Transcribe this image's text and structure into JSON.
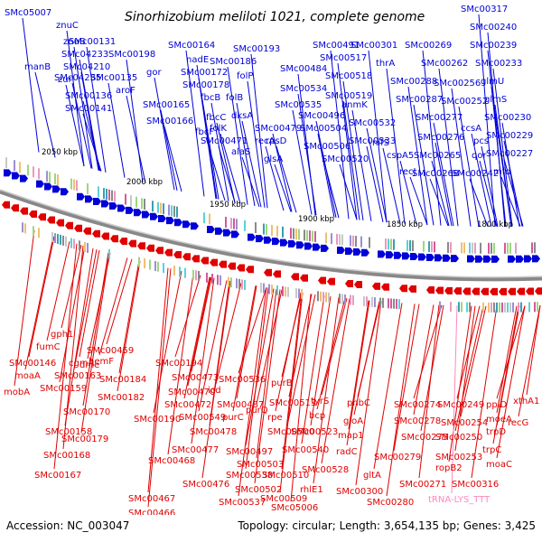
{
  "title": "Sinorhizobium meliloti 1021, complete genome",
  "footer": {
    "accession": "Accession: NC_003047",
    "topology": "Topology: circular; Length: 3,654,135 bp; Genes: 3,425"
  },
  "colors": {
    "forward": "#0000d8",
    "reverse": "#e00000",
    "rna": "#ff88bb",
    "backbone": "#666666"
  },
  "kbp_ticks": [
    "2050 kbp",
    "2000 kbp",
    "1950 kbp",
    "1900 kbp",
    "1850 kbp",
    "1800 kbp"
  ],
  "forward_labels": [
    "SMc05007",
    "znuC",
    "znuB",
    "SMc00131",
    "SMc04233",
    "SMc00198",
    "SMc04210",
    "zur",
    "SMc04235",
    "manB",
    "SMc00135",
    "SMc00136",
    "SMc00141",
    "aroF",
    "gor",
    "SMc00165",
    "SMc00166",
    "SMc00164",
    "nadE",
    "SMc00172",
    "SMc00178",
    "fbcB",
    "fbcC",
    "fbcF",
    "SMc00186",
    "SMc00193",
    "folP",
    "folB",
    "dksA",
    "folK",
    "SMc00471",
    "alaS",
    "recA",
    "SMc00479",
    "rpsD",
    "glsA",
    "SMc00484",
    "SMc00534",
    "SMc00535",
    "SMc00496",
    "SMc00504",
    "SMc00506",
    "SMc00491",
    "SMc00517",
    "SMc00518",
    "SMc00519",
    "SMc00520",
    "SMc00301",
    "anmK",
    "SMc00532",
    "SMc00533",
    "nifS",
    "thrA",
    "SMc00288",
    "SMc00287",
    "cspA5",
    "recJ",
    "SMc00269",
    "SMc00262",
    "SMc00277",
    "SMc00276",
    "SMc00265",
    "SMc00268",
    "SMc00256",
    "SMc00252",
    "SMc00317",
    "SMc00240",
    "SMc00239",
    "SMc00233",
    "glmU",
    "glmS",
    "SMc00230",
    "SMc00229",
    "SMc00227",
    "ccsA",
    "pcs",
    "qor",
    "SMc00242",
    "mfd"
  ],
  "reverse_labels": [
    "gph1",
    "fumC",
    "SMc00146",
    "moaA",
    "mobA",
    "SMc00163",
    "SMc00159",
    "SMc00158",
    "cgmA",
    "dme",
    "SMc00459",
    "hemF",
    "SMc00184",
    "SMc00182",
    "SMc00170",
    "SMc00179",
    "SMc00168",
    "SMc00167",
    "SMc00194",
    "SMc00190",
    "SMc00473",
    "SMc00470",
    "SMc00472",
    "SMc00549",
    "SMc00478",
    "SMc00477",
    "SMc00468",
    "SMc00476",
    "SMc00467",
    "SMc00466",
    "icd",
    "SMc00536",
    "SMc00487",
    "purC",
    "purQ",
    "SMc00497",
    "SMc00503",
    "SMc00538",
    "SMc00502",
    "SMc00537",
    "purB",
    "SMc00513",
    "rpe",
    "SMc00500",
    "SMc00510",
    "SMc00509",
    "tyrS",
    "bcp",
    "SMc00523",
    "SMc00540",
    "rhlE1",
    "SMc00528",
    "SMc05006",
    "phbC",
    "SMc00300",
    "gltA",
    "map1",
    "radC",
    "gloA",
    "SMc00274",
    "SMc00278",
    "SMc00275",
    "SMc00279",
    "SMc00280",
    "SMc00271",
    "SMc00249",
    "SMc00254",
    "SMc00250",
    "SMc00253",
    "ropB2",
    "SMc00316",
    "ppiD",
    "moeA",
    "trpD",
    "trpC",
    "moaC",
    "xthA1",
    "recG"
  ],
  "rna_labels": [
    "tRNA-LYS_TTT"
  ]
}
